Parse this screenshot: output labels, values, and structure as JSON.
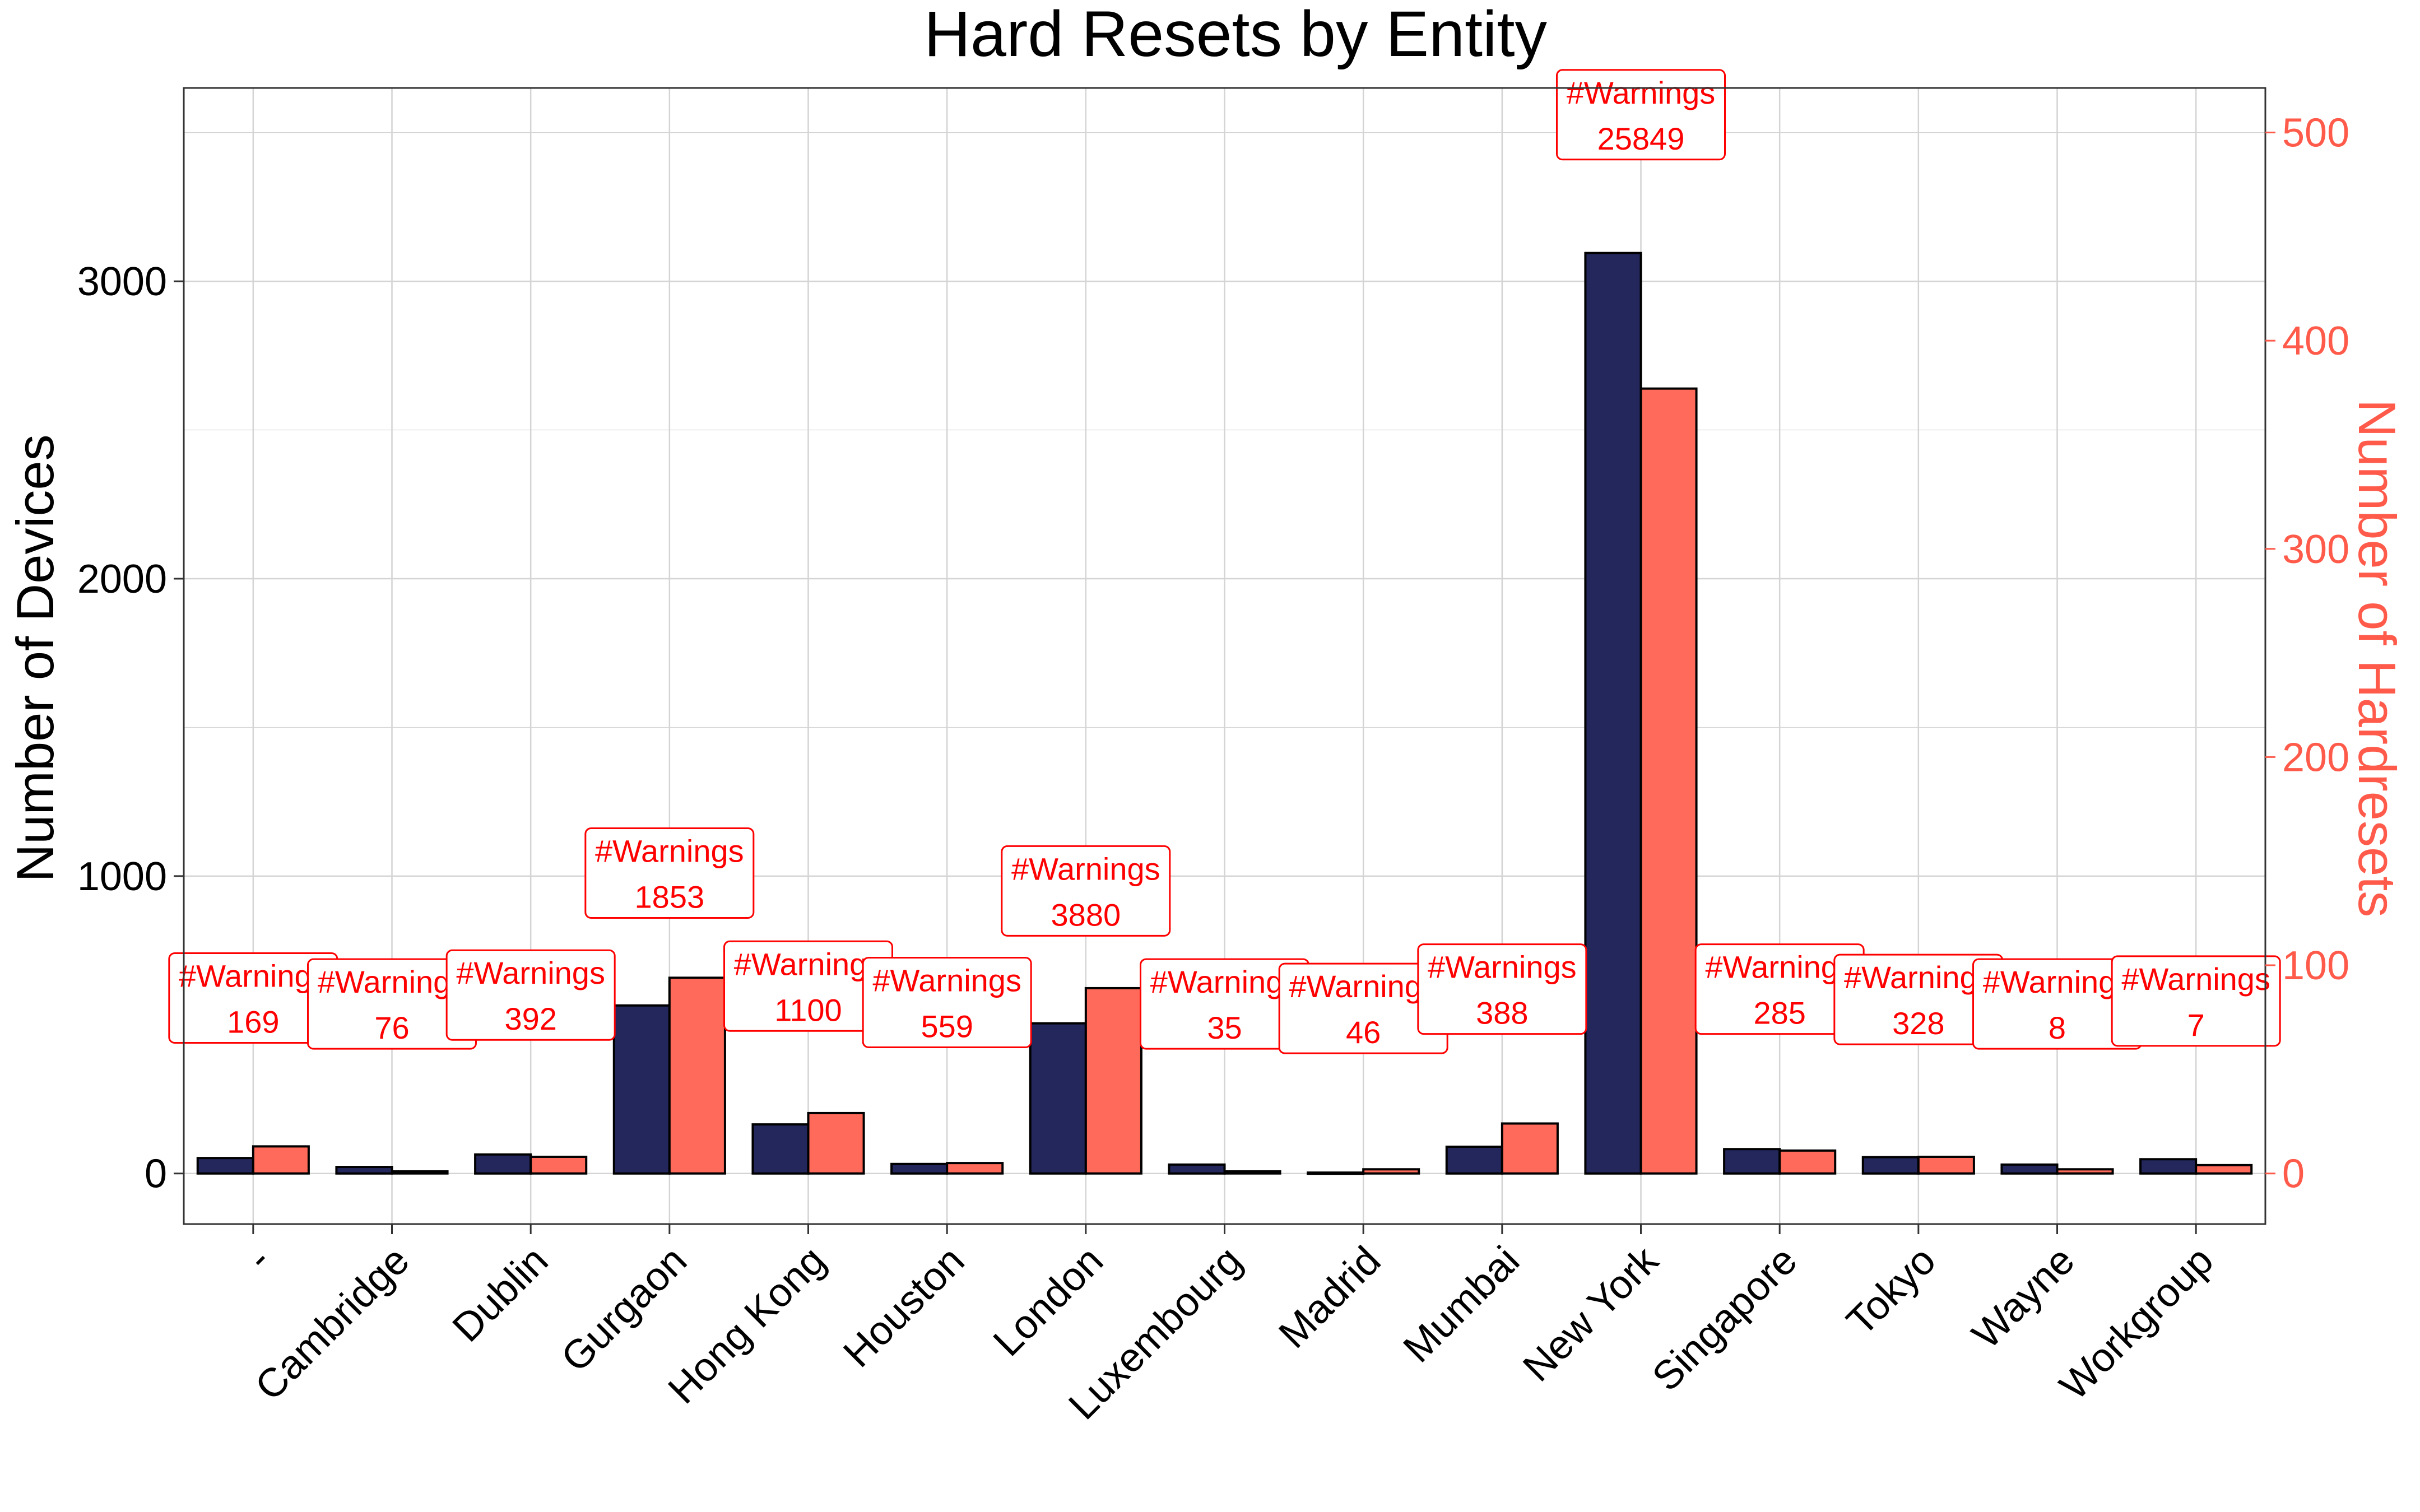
{
  "colors": {
    "devices_bar": "#23275c",
    "hardresets_bar": "#ff6a5a",
    "right_axis": "#ff5a4a",
    "annotation": "#ff0000",
    "grid": "#d4d4d4",
    "panel_border": "#333333"
  },
  "chart_data": {
    "type": "bar",
    "title": "Hard Resets by Entity",
    "ylabel": "Number of Devices",
    "ylabel_right": "Number of Hardresets",
    "ylim": [
      -170,
      3650
    ],
    "ylim_right": [
      -24.3,
      521.4
    ],
    "yticks": [
      0,
      1000,
      2000,
      3000
    ],
    "yticks_right": [
      0,
      100,
      200,
      300,
      400,
      500
    ],
    "grid": true,
    "categories": [
      "-",
      "Cambridge",
      "Dublin",
      "Gurgaon",
      "Hong Kong",
      "Houston",
      "London",
      "Luxembourg",
      "Madrid",
      "Mumbai",
      "New York",
      "Singapore",
      "Tokyo",
      "Wayne",
      "Workgroup"
    ],
    "series": [
      {
        "axis": "left",
        "values": [
          52,
          22,
          64,
          565,
          165,
          32,
          505,
          30,
          3,
          90,
          3095,
          82,
          55,
          30,
          48
        ]
      },
      {
        "axis": "right",
        "values": [
          13,
          1,
          8,
          94,
          29,
          5,
          89,
          1,
          2,
          24,
          377,
          11,
          8,
          2,
          4
        ]
      }
    ],
    "annotations": {
      "label": "#Warnings",
      "values": [
        "169",
        "76",
        "392",
        "1853",
        "1100",
        "559",
        "3880",
        "35",
        "46",
        "388",
        "25849",
        "285",
        "328",
        "8",
        "7"
      ],
      "y": [
        590,
        570,
        600,
        1010,
        630,
        575,
        950,
        570,
        555,
        620,
        3560,
        620,
        585,
        570,
        580
      ]
    }
  }
}
